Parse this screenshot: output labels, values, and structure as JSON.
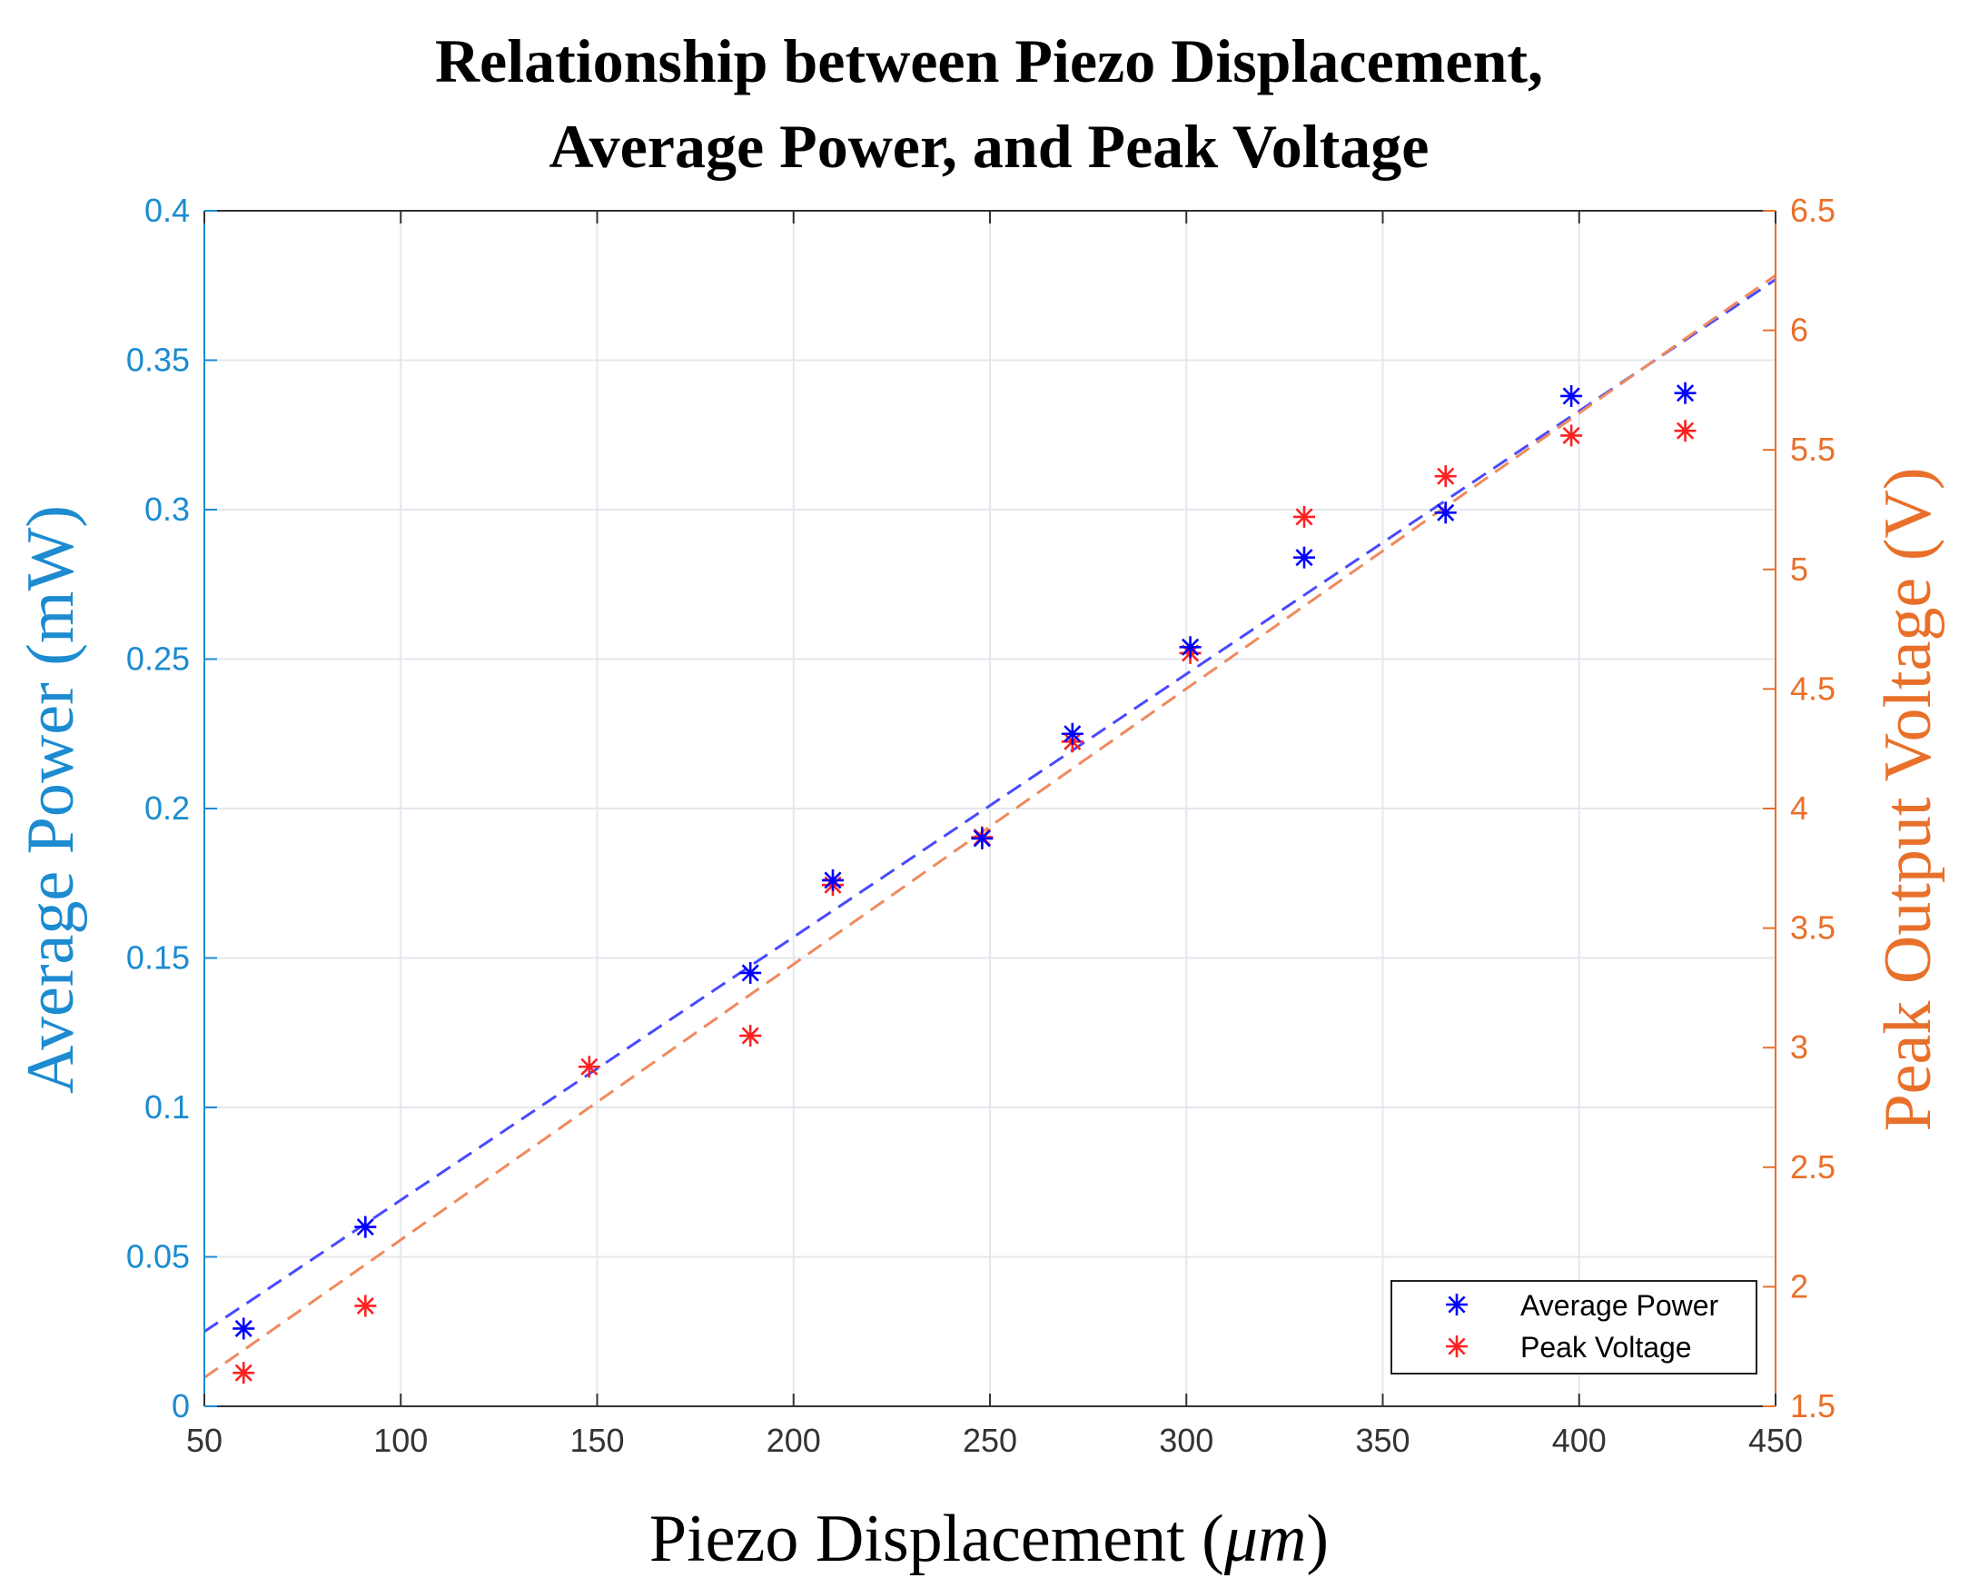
{
  "chart_data": {
    "type": "scatter",
    "title_lines": [
      "Relationship between Piezo Displacement,",
      "Average Power, and Peak Voltage"
    ],
    "xlabel_main": "Piezo Displacement (",
    "xlabel_unit": "μm",
    "xlabel_close": ")",
    "ylabel_left": "Average Power (mW)",
    "ylabel_right": "Peak Output Voltage (V)",
    "xlim": [
      50,
      450
    ],
    "ylim_left": [
      0,
      0.4
    ],
    "ylim_right": [
      1.5,
      6.5
    ],
    "x_ticks": [
      50,
      100,
      150,
      200,
      250,
      300,
      350,
      400,
      450
    ],
    "x_tick_labels": [
      "50",
      "100",
      "150",
      "200",
      "250",
      "300",
      "350",
      "400",
      "450"
    ],
    "y_left_ticks": [
      0,
      0.05,
      0.1,
      0.15,
      0.2,
      0.25,
      0.3,
      0.35,
      0.4
    ],
    "y_left_tick_labels": [
      "0",
      "0.05",
      "0.1",
      "0.15",
      "0.2",
      "0.25",
      "0.3",
      "0.35",
      "0.4"
    ],
    "y_right_ticks": [
      1.5,
      2,
      2.5,
      3,
      3.5,
      4,
      4.5,
      5,
      5.5,
      6,
      6.5
    ],
    "y_right_tick_labels": [
      "1.5",
      "2",
      "2.5",
      "3",
      "3.5",
      "4",
      "4.5",
      "5",
      "5.5",
      "6",
      "6.5"
    ],
    "grid": true,
    "legend_position": "bottom-right",
    "series": [
      {
        "name": "Average Power",
        "axis": "left",
        "marker": "*",
        "color": "#0000ff",
        "x": [
          60,
          91,
          189,
          210,
          248,
          271,
          301,
          330,
          366,
          398,
          427
        ],
        "y": [
          0.026,
          0.06,
          0.145,
          0.176,
          0.19,
          0.225,
          0.254,
          0.284,
          0.299,
          0.338,
          0.339
        ]
      },
      {
        "name": "Peak Voltage",
        "axis": "right",
        "marker": "*",
        "color": "#ff2020",
        "x": [
          60,
          91,
          148,
          189,
          210,
          248,
          271,
          301,
          330,
          366,
          398,
          427
        ],
        "y": [
          1.64,
          1.92,
          2.92,
          3.05,
          3.68,
          3.88,
          4.28,
          4.65,
          5.22,
          5.39,
          5.56,
          5.58
        ]
      }
    ],
    "fits": [
      {
        "name": "Average Power fit",
        "axis": "left",
        "color": "#4a4aff",
        "x": [
          50,
          450
        ],
        "y": [
          0.025,
          0.377
        ]
      },
      {
        "name": "Peak Voltage fit",
        "axis": "right",
        "color": "#f08a5d",
        "x": [
          50,
          450
        ],
        "y": [
          1.62,
          6.23
        ]
      }
    ],
    "colors": {
      "left_axis": "#1c8bd0",
      "right_axis": "#e8702a",
      "grid": "#e3e8ee",
      "axis_box": "#333333"
    }
  }
}
